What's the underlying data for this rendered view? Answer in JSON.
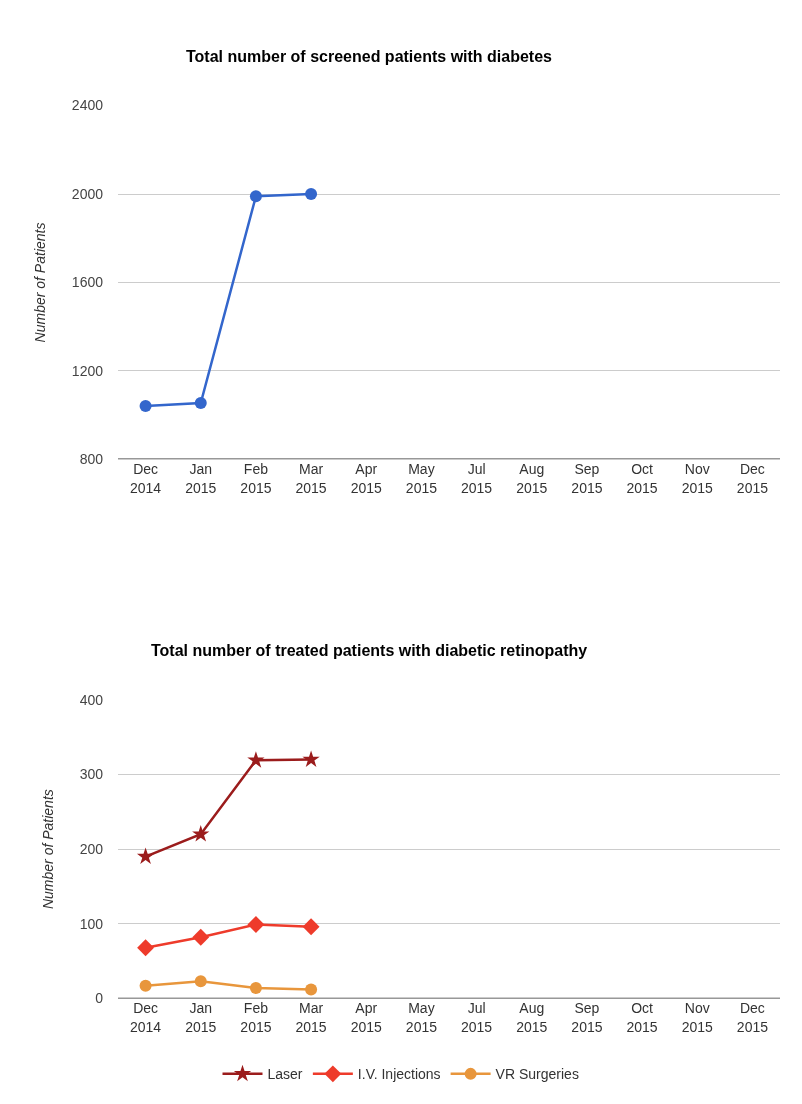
{
  "chart_data": [
    {
      "type": "line",
      "title": "Total number of screened patients with diabetes",
      "ylabel": "Number of Patients",
      "categories": [
        "Dec 2014",
        "Jan 2015",
        "Feb 2015",
        "Mar 2015",
        "Apr 2015",
        "May 2015",
        "Jul 2015",
        "Aug 2015",
        "Sep 2015",
        "Oct 2015",
        "Nov 2015",
        "Dec 2015"
      ],
      "series": [
        {
          "color": "#3366cc",
          "values": [
            1041,
            1055,
            1990,
            2000,
            null,
            null,
            null,
            null,
            null,
            null,
            null,
            null
          ]
        }
      ],
      "ylim": [
        800,
        2400
      ],
      "yticks": [
        800,
        1200,
        1600,
        2000,
        2400
      ],
      "grid": "y",
      "marker": "circle",
      "legend": false
    },
    {
      "type": "line",
      "title": "Total number of treated patients with diabetic retinopathy",
      "ylabel": "Number of Patients",
      "categories": [
        "Dec 2014",
        "Jan 2015",
        "Feb 2015",
        "Mar 2015",
        "Apr 2015",
        "May 2015",
        "Jul 2015",
        "Aug 2015",
        "Sep 2015",
        "Oct 2015",
        "Nov 2015",
        "Dec 2015"
      ],
      "series": [
        {
          "name": "Laser",
          "color": "#9b1c1c",
          "marker": "star",
          "values": [
            190,
            220,
            319,
            320,
            null,
            null,
            null,
            null,
            null,
            null,
            null,
            null
          ]
        },
        {
          "name": "I.V. Injections",
          "color": "#ee3b2b",
          "marker": "diamond",
          "values": [
            68,
            82,
            99,
            96,
            null,
            null,
            null,
            null,
            null,
            null,
            null,
            null
          ]
        },
        {
          "name": "VR Surgeries",
          "color": "#e8963c",
          "marker": "circle",
          "values": [
            17,
            23,
            14,
            12,
            null,
            null,
            null,
            null,
            null,
            null,
            null,
            null
          ]
        }
      ],
      "ylim": [
        0,
        400
      ],
      "yticks": [
        0,
        100,
        200,
        300,
        400
      ],
      "grid": "y",
      "legend": "bottom"
    }
  ]
}
